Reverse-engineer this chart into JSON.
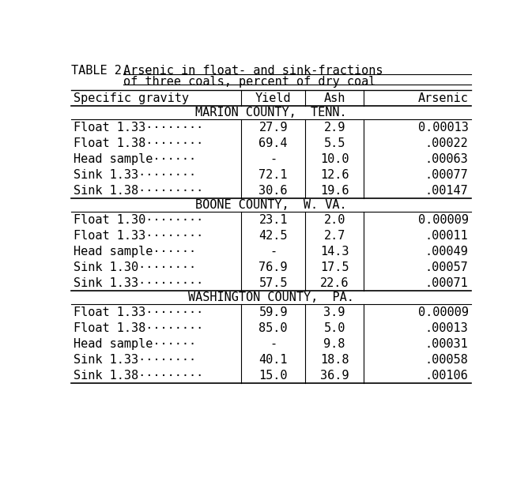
{
  "title_prefix": "TABLE 2.  - ",
  "title_underlined1": "Arsenic in float- and sink-fractions",
  "title_underlined2": "of three coals, percent of dry coal",
  "col_headers": [
    "Specific gravity",
    "Yield",
    "Ash",
    "Arsenic"
  ],
  "sections": [
    {
      "section_header": "MARION COUNTY,  TENN.",
      "rows": [
        [
          "Float 1.33········",
          "27.9",
          "2.9",
          "0.00013"
        ],
        [
          "Float 1.38········",
          "69.4",
          "5.5",
          ".00022"
        ],
        [
          "Head sample······",
          "-",
          "10.0",
          ".00063"
        ],
        [
          "Sink 1.33········",
          "72.1",
          "12.6",
          ".00077"
        ],
        [
          "Sink 1.38·········",
          "30.6",
          "19.6",
          ".00147"
        ]
      ]
    },
    {
      "section_header": "BOONE COUNTY,  W. VA.",
      "rows": [
        [
          "Float 1.30········",
          "23.1",
          "2.0",
          "0.00009"
        ],
        [
          "Float 1.33········",
          "42.5",
          "2.7",
          ".00011"
        ],
        [
          "Head sample······",
          "-",
          "14.3",
          ".00049"
        ],
        [
          "Sink 1.30········",
          "76.9",
          "17.5",
          ".00057"
        ],
        [
          "Sink 1.33·········",
          "57.5",
          "22.6",
          ".00071"
        ]
      ]
    },
    {
      "section_header": "WASHINGTON COUNTY,  PA.",
      "rows": [
        [
          "Float 1.33········",
          "59.9",
          "3.9",
          "0.00009"
        ],
        [
          "Float 1.38········",
          "85.0",
          "5.0",
          ".00013"
        ],
        [
          "Head sample······",
          "-",
          "9.8",
          ".00031"
        ],
        [
          "Sink 1.33········",
          "40.1",
          "18.8",
          ".00058"
        ],
        [
          "Sink 1.38·········",
          "15.0",
          "36.9",
          ".00106"
        ]
      ]
    }
  ],
  "bg_color": "#ffffff",
  "font_size": 11.0,
  "font_family": "DejaVu Sans Mono"
}
